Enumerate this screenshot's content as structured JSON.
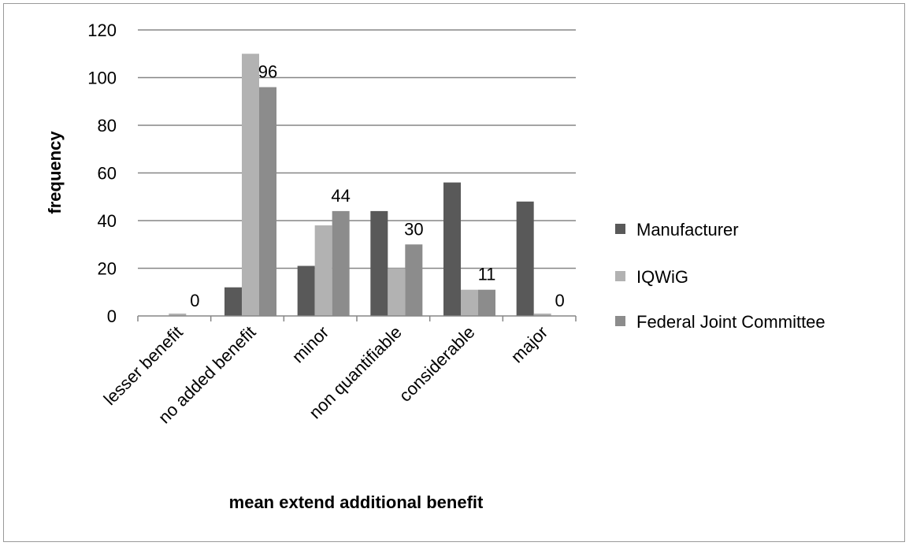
{
  "chart_data": {
    "type": "bar",
    "categories": [
      "lesser benefit",
      "no added benefit",
      "minor",
      "non quantifiable",
      "considerable",
      "major"
    ],
    "series": [
      {
        "name": "Manufacturer",
        "values": [
          0,
          12,
          21,
          44,
          56,
          48
        ],
        "color": "#595959"
      },
      {
        "name": "IQWiG",
        "values": [
          1,
          110,
          38,
          20,
          11,
          1
        ],
        "color": "#b2b2b2"
      },
      {
        "name": "Federal Joint Committee",
        "values": [
          0,
          96,
          44,
          30,
          11,
          0
        ],
        "color": "#8c8c8c"
      }
    ],
    "data_labels": [
      "0",
      "96",
      "44",
      "30",
      "11",
      "0"
    ],
    "xlabel": "mean extend additional benefit",
    "ylabel": "frequency",
    "ylim": [
      0,
      120
    ],
    "yticks": [
      0,
      20,
      40,
      60,
      80,
      100,
      120
    ],
    "grid": true,
    "legend_position": "right"
  }
}
